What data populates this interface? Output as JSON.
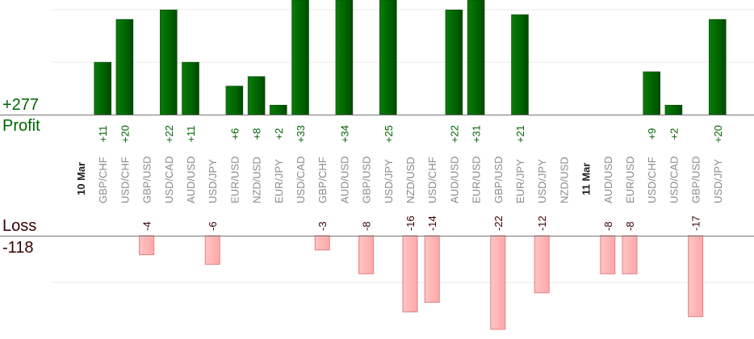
{
  "summary": {
    "profit_total": "+277",
    "profit_label": "Profit",
    "loss_label": "Loss",
    "loss_total": "-118"
  },
  "colors": {
    "profit": "#006400",
    "loss": "#ffb3b3",
    "loss_border": "#e08080",
    "profit_text": "#006400",
    "loss_text": "#3a0000",
    "grid": "#e8e8e8",
    "axis": "#777777"
  },
  "chart_data": {
    "type": "bar",
    "x": [
      {
        "label": "10 Mar",
        "kind": "date"
      },
      {
        "label": "GBP/CHF",
        "profit": 11,
        "profit_label": "+11"
      },
      {
        "label": "USD/CHF",
        "profit": 20,
        "profit_label": "+20"
      },
      {
        "label": "GBP/USD",
        "loss": 4,
        "loss_label": "-4"
      },
      {
        "label": "USD/CAD",
        "profit": 22,
        "profit_label": "+22"
      },
      {
        "label": "AUD/USD",
        "profit": 11,
        "profit_label": "+11"
      },
      {
        "label": "USD/JPY",
        "loss": 6,
        "loss_label": "-6"
      },
      {
        "label": "EUR/USD",
        "profit": 6,
        "profit_label": "+6"
      },
      {
        "label": "NZD/USD",
        "profit": 8,
        "profit_label": "+8"
      },
      {
        "label": "EUR/JPY",
        "profit": 2,
        "profit_label": "+2"
      },
      {
        "label": "USD/CAD",
        "profit": 33,
        "profit_label": "+33"
      },
      {
        "label": "GBP/CHF",
        "loss": 3,
        "loss_label": "-3"
      },
      {
        "label": "AUD/USD",
        "profit": 34,
        "profit_label": "+34"
      },
      {
        "label": "GBP/USD",
        "loss": 8,
        "loss_label": "-8"
      },
      {
        "label": "USD/JPY",
        "profit": 25,
        "profit_label": "+25"
      },
      {
        "label": "NZD/USD",
        "loss": 16,
        "loss_label": "-16"
      },
      {
        "label": "USD/CHF",
        "loss": 14,
        "loss_label": "-14"
      },
      {
        "label": "AUD/USD",
        "profit": 22,
        "profit_label": "+22"
      },
      {
        "label": "EUR/USD",
        "profit": 31,
        "profit_label": "+31"
      },
      {
        "label": "GBP/USD",
        "loss": 22,
        "loss_label": "-22"
      },
      {
        "label": "EUR/JPY",
        "profit": 21,
        "profit_label": "+21"
      },
      {
        "label": "USD/JPY",
        "loss": 12,
        "loss_label": "-12"
      },
      {
        "label": "NZD/USD"
      },
      {
        "label": "11 Mar",
        "kind": "date"
      },
      {
        "label": "AUD/USD",
        "loss": 8,
        "loss_label": "-8"
      },
      {
        "label": "EUR/USD",
        "loss": 8,
        "loss_label": "-8"
      },
      {
        "label": "USD/CHF",
        "profit": 9,
        "profit_label": "+9"
      },
      {
        "label": "USD/CAD",
        "profit": 2,
        "profit_label": "+2"
      },
      {
        "label": "GBP/USD",
        "loss": 17,
        "loss_label": "-17"
      },
      {
        "label": "USD/JPY",
        "profit": 20,
        "profit_label": "+20"
      }
    ],
    "profit_axis_range": [
      0,
      22
    ],
    "loss_axis_range": [
      0,
      22
    ],
    "grid": true
  }
}
